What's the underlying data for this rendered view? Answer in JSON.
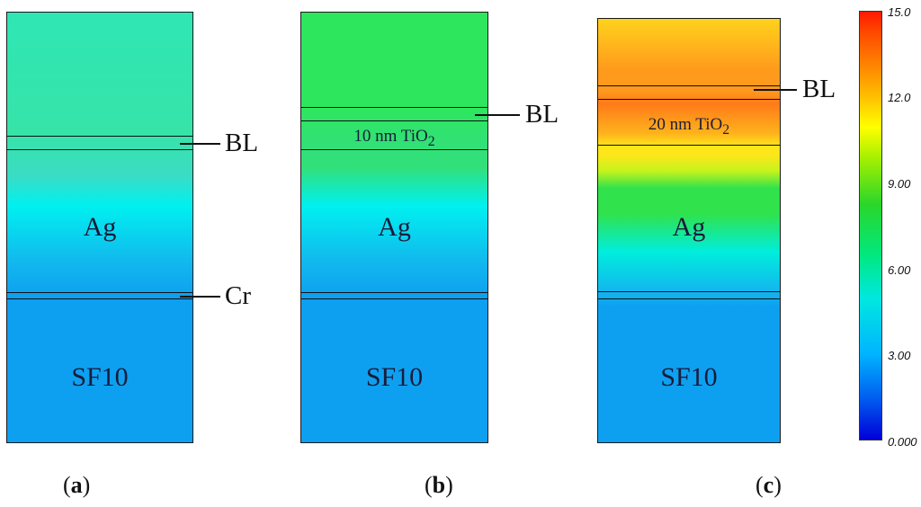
{
  "panels": [
    {
      "caption_open": "(",
      "caption_letter": "a",
      "caption_close": ")",
      "labels": {
        "ag": "Ag",
        "substrate": "SF10"
      },
      "callouts": {
        "bl": "BL",
        "cr": "Cr"
      },
      "gradient_colors": [
        "#2fe6b4",
        "#36e4a8",
        "#3bdcc4",
        "#00f0f0",
        "#12b8ee",
        "#0ea0f0"
      ]
    },
    {
      "caption_open": "(",
      "caption_letter": "b",
      "caption_close": ")",
      "labels": {
        "tio2": "10 nm TiO",
        "tio2_sub": "2",
        "ag": "Ag",
        "substrate": "SF10"
      },
      "callouts": {
        "bl": "BL"
      },
      "gradient_colors": [
        "#2ee65e",
        "#32e07a",
        "#00f0f0",
        "#12b8ee",
        "#0ea0f0"
      ]
    },
    {
      "caption_open": "(",
      "caption_letter": "c",
      "caption_close": ")",
      "labels": {
        "tio2": "20 nm TiO",
        "tio2_sub": "2",
        "ag": "Ag",
        "substrate": "SF10"
      },
      "callouts": {
        "bl": "BL"
      },
      "gradient_colors": [
        "#ffd21c",
        "#ff9a1c",
        "#ff7a1a",
        "#ffe61a",
        "#c4f41c",
        "#30e24c",
        "#00eedc",
        "#12b8ee",
        "#0ea0f0"
      ]
    }
  ],
  "colorbar": {
    "ticks": [
      "15.0",
      "12.0",
      "9.00",
      "6.00",
      "3.00",
      "0.000"
    ],
    "colors": [
      "#0000d8",
      "#00b4ff",
      "#00e880",
      "#a8f000",
      "#ffff00",
      "#ff8000",
      "#ff1a00"
    ]
  },
  "style": {
    "border": "#111111",
    "text": "#1b1b3a"
  }
}
